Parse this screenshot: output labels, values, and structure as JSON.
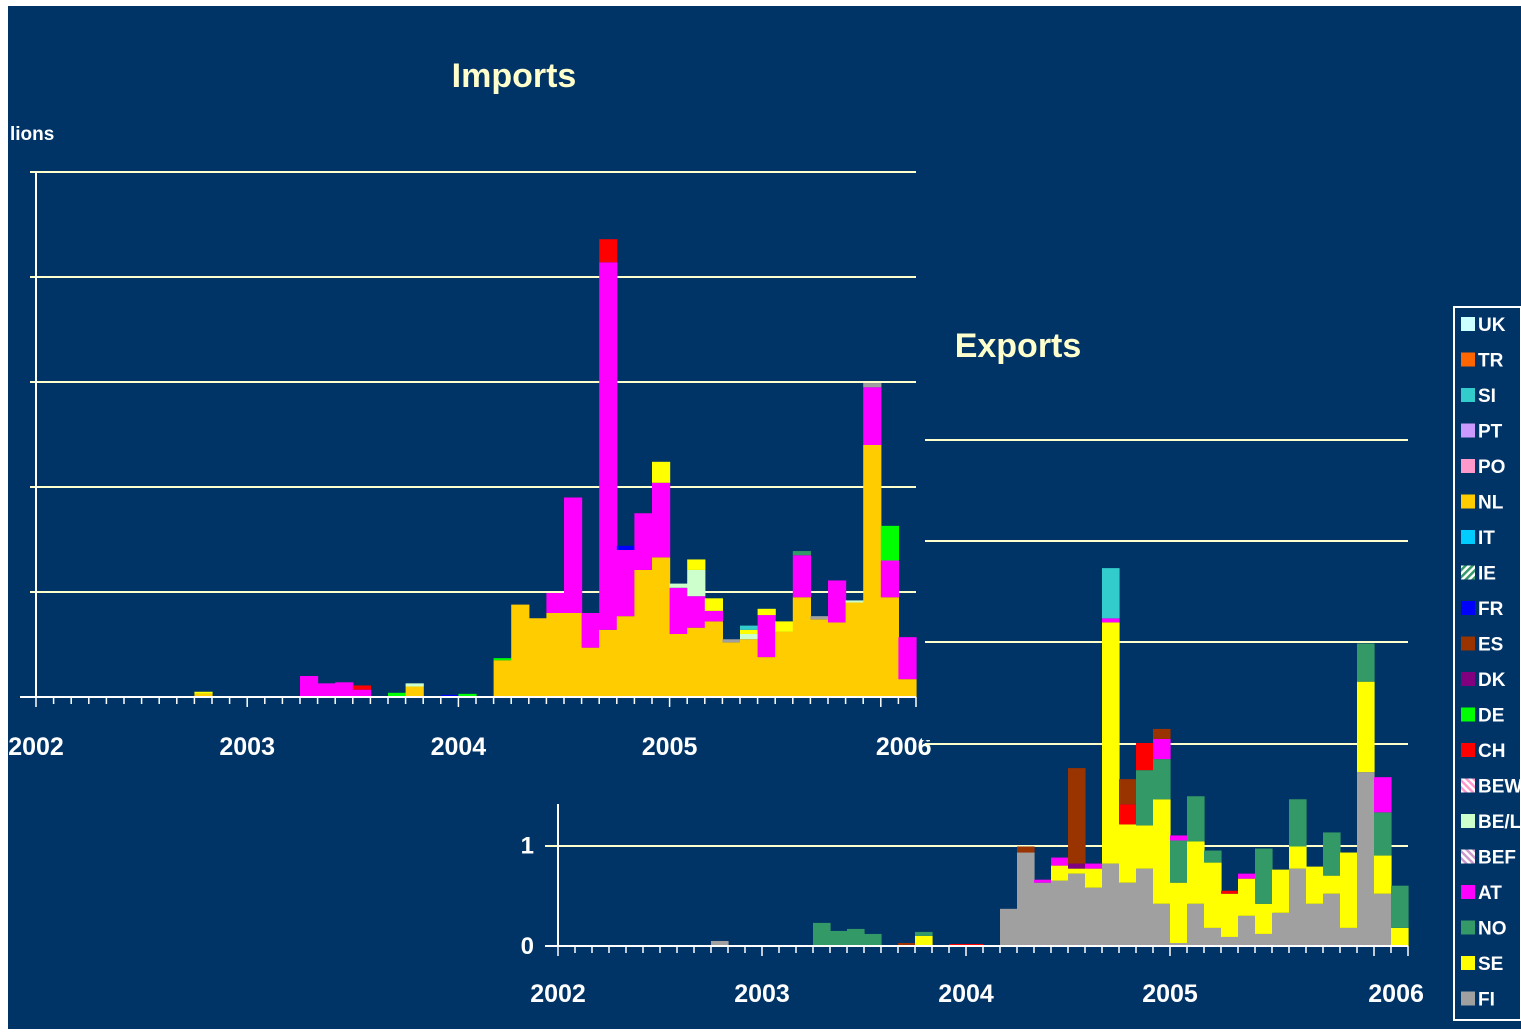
{
  "colors": {
    "background": "#003366",
    "gridline": "#ffffcc",
    "axis": "#ffffff",
    "text": "#ffffff",
    "title_text": "#ffffcc"
  },
  "series_colors": {
    "UK": "#ccffff",
    "TR": "#ff6600",
    "SI": "#33cccc",
    "PT": "#cc99ff",
    "PO": "#ff99cc",
    "NL": "#ffcc00",
    "IT": "#00ccff",
    "IE": "#339966",
    "FR": "#0000ff",
    "ES": "#993300",
    "DK": "#800080",
    "DE": "#00ff00",
    "CH": "#ff0000",
    "BEW": "#ff99cc",
    "BE/L": "#ccffcc",
    "BEF": "#cc99cc",
    "AT": "#ff00ff",
    "NO": "#339966",
    "SE": "#ffff00",
    "FI": "#a0a0a0"
  },
  "legend": {
    "placement": "right",
    "items": [
      "UK",
      "TR",
      "SI",
      "PT",
      "PO",
      "NL",
      "IT",
      "IE",
      "FR",
      "ES",
      "DK",
      "DE",
      "CH",
      "BEW",
      "BE/L",
      "BEF",
      "AT",
      "NO",
      "SE",
      "FI"
    ],
    "hatched": [
      "IE",
      "BEW",
      "BEF"
    ]
  },
  "chart_data": [
    {
      "type": "bar",
      "stacked": true,
      "title": "Imports",
      "ylabel": "lions",
      "x_tick_labels": [
        "2002",
        "2003",
        "2004",
        "2005",
        "2006"
      ],
      "grid": true,
      "periods_per_year": 12,
      "stack_order": [
        "NL",
        "AT",
        "DE",
        "CH",
        "FR",
        "BE/L",
        "SE",
        "SI",
        "NO",
        "FI"
      ],
      "bars": [
        {
          "i": 9,
          "NL": 0.03,
          "SE": 0.02
        },
        {
          "i": 15,
          "AT": 0.2
        },
        {
          "i": 16,
          "AT": 0.13
        },
        {
          "i": 17,
          "AT": 0.14
        },
        {
          "i": 18,
          "AT": 0.07,
          "CH": 0.04
        },
        {
          "i": 20,
          "DE": 0.04
        },
        {
          "i": 21,
          "NL": 0.1,
          "BE/L": 0.03
        },
        {
          "i": 23,
          "FR": 0.02
        },
        {
          "i": 24,
          "DE": 0.03
        },
        {
          "i": 26,
          "NL": 0.35,
          "DE": 0.02
        },
        {
          "i": 27,
          "NL": 0.88
        },
        {
          "i": 28,
          "NL": 0.75
        },
        {
          "i": 29,
          "NL": 0.8,
          "AT": 0.19
        },
        {
          "i": 30,
          "NL": 0.8,
          "AT": 1.1
        },
        {
          "i": 31,
          "NL": 0.47,
          "AT": 0.33
        },
        {
          "i": 32,
          "NL": 0.64,
          "AT": 3.5,
          "CH": 0.22
        },
        {
          "i": 33,
          "NL": 0.77,
          "AT": 0.63,
          "FR": 0.04
        },
        {
          "i": 34,
          "NL": 1.21,
          "AT": 0.54
        },
        {
          "i": 35,
          "NL": 1.33,
          "AT": 0.71,
          "SE": 0.2
        },
        {
          "i": 36,
          "NL": 0.6,
          "AT": 0.44,
          "BE/L": 0.04
        },
        {
          "i": 37,
          "NL": 0.66,
          "AT": 0.3,
          "BE/L": 0.25,
          "SE": 0.1
        },
        {
          "i": 38,
          "NL": 0.72,
          "AT": 0.1,
          "SE": 0.12
        },
        {
          "i": 39,
          "NL": 0.52,
          "FI": 0.03
        },
        {
          "i": 40,
          "NL": 0.55,
          "BE/L": 0.05,
          "SE": 0.04,
          "SI": 0.04
        },
        {
          "i": 41,
          "NL": 0.38,
          "AT": 0.4,
          "SE": 0.06
        },
        {
          "i": 42,
          "NL": 0.62,
          "SE": 0.1
        },
        {
          "i": 43,
          "NL": 0.95,
          "AT": 0.4,
          "NO": 0.04
        },
        {
          "i": 44,
          "NL": 0.74,
          "FI": 0.03
        },
        {
          "i": 45,
          "NL": 0.71,
          "AT": 0.4
        },
        {
          "i": 46,
          "NL": 0.9,
          "BE/L": 0.02
        },
        {
          "i": 47,
          "NL": 2.4,
          "AT": 0.55,
          "FI": 0.04
        },
        {
          "i": 48,
          "NL": 0.95,
          "AT": 0.35,
          "DE": 0.33
        },
        {
          "i": 49,
          "NL": 0.17,
          "AT": 0.4
        }
      ]
    },
    {
      "type": "bar",
      "stacked": true,
      "title": "Exports",
      "y_tick_labels": [
        "0",
        "1"
      ],
      "x_tick_labels": [
        "2002",
        "2003",
        "2004",
        "2005",
        "2006"
      ],
      "grid": true,
      "periods_per_year": 12,
      "stack_order": [
        "FI",
        "SE",
        "NO",
        "AT",
        "CH",
        "DK",
        "ES",
        "SI"
      ],
      "bars": [
        {
          "i": 9,
          "FI": 0.05
        },
        {
          "i": 15,
          "NO": 0.23
        },
        {
          "i": 16,
          "NO": 0.15
        },
        {
          "i": 17,
          "NO": 0.17
        },
        {
          "i": 18,
          "NO": 0.12
        },
        {
          "i": 20,
          "ES": 0.03
        },
        {
          "i": 21,
          "SE": 0.1,
          "NO": 0.04
        },
        {
          "i": 23,
          "CH": 0.02
        },
        {
          "i": 24,
          "CH": 0.02
        },
        {
          "i": 26,
          "FI": 0.37
        },
        {
          "i": 27,
          "FI": 0.93,
          "ES": 0.06
        },
        {
          "i": 28,
          "FI": 0.63,
          "AT": 0.03
        },
        {
          "i": 29,
          "FI": 0.65,
          "SE": 0.15,
          "AT": 0.08
        },
        {
          "i": 30,
          "FI": 0.72,
          "SE": 0.05,
          "DK": 0.05,
          "ES": 0.95
        },
        {
          "i": 31,
          "FI": 0.58,
          "SE": 0.19,
          "AT": 0.05
        },
        {
          "i": 32,
          "FI": 0.82,
          "SE": 2.4,
          "AT": 0.04,
          "SI": 0.5
        },
        {
          "i": 33,
          "FI": 0.63,
          "SE": 0.58,
          "CH": 0.2,
          "ES": 0.25
        },
        {
          "i": 34,
          "FI": 0.77,
          "SE": 0.43,
          "NO": 0.55,
          "CH": 0.27
        },
        {
          "i": 35,
          "FI": 0.42,
          "SE": 1.04,
          "NO": 0.4,
          "AT": 0.2,
          "ES": 0.1
        },
        {
          "i": 36,
          "FI": 0.03,
          "SE": 0.6,
          "NO": 0.42,
          "AT": 0.05
        },
        {
          "i": 37,
          "FI": 0.42,
          "SE": 0.62,
          "NO": 0.45
        },
        {
          "i": 38,
          "FI": 0.18,
          "SE": 0.65,
          "NO": 0.12
        },
        {
          "i": 39,
          "FI": 0.09,
          "SE": 0.43,
          "CH": 0.03
        },
        {
          "i": 40,
          "FI": 0.3,
          "SE": 0.37,
          "AT": 0.05
        },
        {
          "i": 41,
          "FI": 0.12,
          "SE": 0.3,
          "NO": 0.55
        },
        {
          "i": 42,
          "FI": 0.33,
          "SE": 0.43
        },
        {
          "i": 43,
          "FI": 0.77,
          "SE": 0.22,
          "NO": 0.47
        },
        {
          "i": 44,
          "FI": 0.42,
          "SE": 0.37
        },
        {
          "i": 45,
          "FI": 0.52,
          "SE": 0.18,
          "NO": 0.43
        },
        {
          "i": 46,
          "FI": 0.18,
          "SE": 0.75
        },
        {
          "i": 47,
          "FI": 1.73,
          "SE": 0.9,
          "NO": 0.38
        },
        {
          "i": 48,
          "FI": 0.52,
          "SE": 0.38,
          "NO": 0.43,
          "AT": 0.35
        },
        {
          "i": 49,
          "SE": 0.18,
          "NO": 0.42
        }
      ]
    }
  ]
}
